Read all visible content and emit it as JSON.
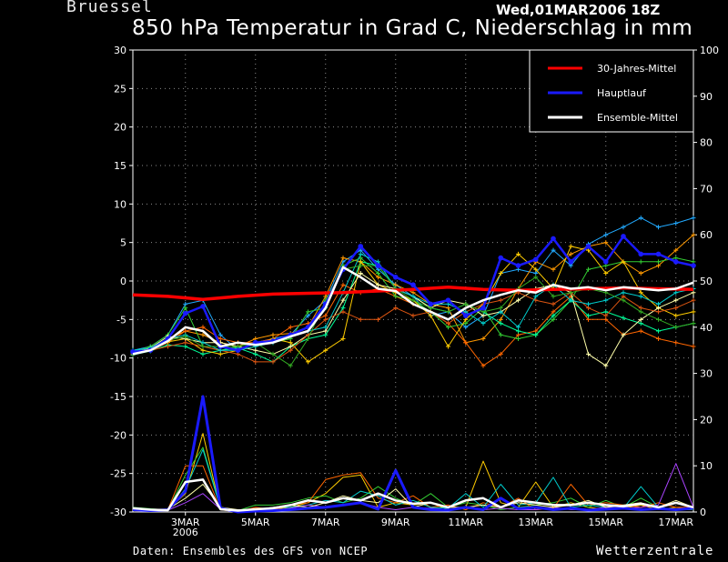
{
  "header": {
    "station": "Bruessel",
    "datetime": "Wed,01MAR2006 18Z",
    "title": "850 hPa Temperatur in Grad C, Niederschlag in mm"
  },
  "footer": {
    "source": "Daten: Ensembles des GFS von NCEP",
    "brand": "Wetterzentrale"
  },
  "chart_data": {
    "type": "line",
    "title": "850 hPa Temperatur in Grad C, Niederschlag in mm",
    "y_left": {
      "range": [
        -30,
        30
      ],
      "ticks": [
        "30",
        "25",
        "20",
        "15",
        "10",
        "5",
        "0",
        "-5",
        "-10",
        "-15",
        "-20",
        "-25",
        "-30"
      ]
    },
    "y_right": {
      "range": [
        0,
        100
      ],
      "ticks": [
        "100",
        "90",
        "80",
        "70",
        "60",
        "50",
        "40",
        "30",
        "20",
        "10",
        "0"
      ]
    },
    "x_range": [
      0,
      16
    ],
    "x_ticks": [
      {
        "label": "3MAR",
        "sub": "2006",
        "x": 1.5
      },
      {
        "label": "5MAR",
        "x": 3.5
      },
      {
        "label": "7MAR",
        "x": 5.5
      },
      {
        "label": "9MAR",
        "x": 7.5
      },
      {
        "label": "11MAR",
        "x": 9.5
      },
      {
        "label": "13MAR",
        "x": 11.5
      },
      {
        "label": "15MAR",
        "x": 13.5
      },
      {
        "label": "17MAR",
        "x": 15.5
      }
    ],
    "grid": true,
    "legend_position": "top-right",
    "legend": [
      {
        "name": "30-Jahres-Mittel",
        "color": "#ff0000"
      },
      {
        "name": "Hauptlauf",
        "color": "#1a1aff"
      },
      {
        "name": "Ensemble-Mittel",
        "color": "#ffffff"
      }
    ],
    "temperature": {
      "climate_mean": {
        "color": "#ff0000",
        "x": [
          0,
          1,
          2,
          3,
          4,
          5,
          6,
          7,
          8,
          9,
          10,
          11,
          12,
          13,
          14,
          15,
          16
        ],
        "y": [
          -1.8,
          -2.0,
          -2.4,
          -2.0,
          -1.7,
          -1.6,
          -1.5,
          -1.3,
          -1.1,
          -0.8,
          -1.1,
          -1.2,
          -1.1,
          -1.0,
          -0.9,
          -1.0,
          -1.1
        ]
      },
      "main_run": {
        "color": "#1a1aff",
        "x": [
          0,
          0.5,
          1,
          1.5,
          2,
          2.5,
          3,
          3.5,
          4,
          4.5,
          5,
          5.5,
          6,
          6.5,
          7,
          7.5,
          8,
          8.5,
          9,
          9.5,
          10,
          10.5,
          11,
          11.5,
          12,
          12.5,
          13,
          13.5,
          14,
          14.5,
          15,
          15.5,
          16
        ],
        "y": [
          -9.2,
          -9.0,
          -7.5,
          -4.2,
          -3.3,
          -8.5,
          -9.0,
          -8.0,
          -7.8,
          -7.0,
          -6.0,
          -3.0,
          1.5,
          4.5,
          2.0,
          0.5,
          -0.5,
          -3.0,
          -2.5,
          -4.5,
          -3.5,
          3.0,
          2.0,
          2.8,
          5.5,
          2.5,
          4.5,
          2.5,
          5.8,
          3.5,
          3.5,
          2.5,
          2.0
        ]
      },
      "ensemble_mean": {
        "color": "#ffffff",
        "x": [
          0,
          0.5,
          1,
          1.5,
          2,
          2.5,
          3,
          3.5,
          4,
          4.5,
          5,
          5.5,
          6,
          6.5,
          7,
          7.5,
          8,
          8.5,
          9,
          9.5,
          10,
          10.5,
          11,
          11.5,
          12,
          12.5,
          13,
          13.5,
          14,
          14.5,
          15,
          15.5,
          16
        ],
        "y": [
          -9.5,
          -9.0,
          -7.8,
          -6.0,
          -6.5,
          -8.5,
          -8.0,
          -8.3,
          -8.0,
          -7.2,
          -6.5,
          -3.5,
          1.8,
          0.5,
          -1.0,
          -1.3,
          -3.0,
          -4.0,
          -5.0,
          -3.5,
          -2.5,
          -1.8,
          -1.2,
          -1.5,
          -0.5,
          -1.0,
          -0.8,
          -1.2,
          -0.8,
          -1.0,
          -1.2,
          -1.0,
          -0.2
        ]
      },
      "members": [
        {
          "color": "#22aaff",
          "y": [
            -9.0,
            -8.5,
            -7.0,
            -3.0,
            -2.5,
            -7.0,
            -9.0,
            -8.0,
            -7.5,
            -7.0,
            -4.5,
            -2.5,
            2.5,
            4.0,
            1.5,
            -0.5,
            -2.0,
            -4.5,
            -4.0,
            -6.0,
            -4.5,
            1.0,
            1.5,
            1.0,
            4.0,
            2.0,
            4.8,
            6.0,
            7.0,
            8.2,
            7.0,
            7.5,
            8.2
          ]
        },
        {
          "color": "#ff9900",
          "y": [
            -9.3,
            -8.8,
            -7.5,
            -6.5,
            -7.0,
            -8.0,
            -8.5,
            -7.5,
            -7.0,
            -6.8,
            -6.0,
            -2.0,
            3.0,
            2.5,
            0.5,
            -0.5,
            -1.5,
            -3.0,
            -3.5,
            -8.0,
            -7.5,
            -5.0,
            -1.0,
            2.5,
            1.5,
            3.5,
            4.5,
            5.0,
            2.5,
            1.0,
            2.0,
            4.0,
            6.0
          ]
        },
        {
          "color": "#ff6600",
          "y": [
            -9.5,
            -9.0,
            -8.0,
            -6.5,
            -6.0,
            -7.5,
            -8.0,
            -8.0,
            -7.5,
            -6.0,
            -5.5,
            -4.5,
            -0.5,
            -1.5,
            -1.0,
            -2.0,
            -3.0,
            -4.0,
            -5.5,
            -8.0,
            -11.0,
            -9.5,
            -7.0,
            -6.5,
            -4.0,
            -2.0,
            -5.0,
            -5.0,
            -7.0,
            -6.5,
            -7.5,
            -8.0,
            -8.5
          ]
        },
        {
          "color": "#33cc33",
          "y": [
            -9.2,
            -8.5,
            -7.0,
            -3.5,
            -8.5,
            -9.0,
            -8.5,
            -8.0,
            -8.0,
            -7.5,
            -4.0,
            -3.5,
            2.0,
            3.0,
            1.0,
            -2.0,
            -2.5,
            -4.0,
            -6.0,
            -5.5,
            -3.5,
            -7.0,
            -7.5,
            -7.0,
            -5.0,
            -2.5,
            1.5,
            2.0,
            2.5,
            2.5,
            2.5,
            3.0,
            2.5
          ]
        },
        {
          "color": "#00ff99",
          "y": [
            -9.6,
            -9.1,
            -8.3,
            -8.5,
            -9.5,
            -9.0,
            -8.7,
            -9.5,
            -10.5,
            -8.5,
            -7.5,
            -7.0,
            -3.5,
            2.5,
            2.0,
            -1.0,
            -2.0,
            -3.5,
            -4.0,
            -3.0,
            -4.0,
            -5.5,
            -6.5,
            -7.0,
            -4.5,
            -2.5,
            -4.5,
            -4.0,
            -4.8,
            -5.5,
            -6.5,
            -6.0,
            -5.5
          ]
        },
        {
          "color": "#ffcc00",
          "y": [
            -9.4,
            -8.9,
            -7.9,
            -7.5,
            -9.0,
            -9.5,
            -9.0,
            -8.5,
            -7.5,
            -8.0,
            -10.5,
            -9.0,
            -7.5,
            2.5,
            -0.5,
            -1.5,
            -2.5,
            -4.5,
            -8.5,
            -5.0,
            -3.0,
            1.0,
            3.5,
            1.5,
            -1.0,
            4.5,
            4.0,
            1.0,
            2.5,
            -1.5,
            -3.5,
            -4.5,
            -4.0
          ]
        },
        {
          "color": "#ffffaa",
          "y": [
            -9.3,
            -8.7,
            -7.2,
            -7.5,
            -8.0,
            -8.0,
            -8.5,
            -9.0,
            -9.5,
            -8.5,
            -7.0,
            -6.5,
            -2.5,
            1.0,
            -0.5,
            -1.0,
            -2.0,
            -3.5,
            -2.5,
            -3.0,
            -4.5,
            -4.0,
            -2.5,
            -1.0,
            -0.5,
            -1.5,
            -9.5,
            -11.0,
            -7.0,
            -5.0,
            -3.5,
            -2.5,
            -1.5
          ]
        },
        {
          "color": "#dd5511",
          "y": [
            -9.5,
            -9.0,
            -8.5,
            -8.0,
            -8.5,
            -9.0,
            -9.5,
            -10.5,
            -10.5,
            -9.0,
            -7.0,
            -5.0,
            -4.0,
            -5.0,
            -5.0,
            -3.5,
            -4.5,
            -4.0,
            -5.5,
            -4.0,
            -3.0,
            -2.5,
            -1.5,
            -2.5,
            -3.0,
            -1.5,
            -3.5,
            -4.5,
            -2.0,
            -3.5,
            -4.0,
            -3.5,
            -2.5
          ]
        },
        {
          "color": "#00cccc",
          "y": [
            -9.0,
            -8.7,
            -7.5,
            -7.0,
            -8.0,
            -9.0,
            -9.0,
            -8.5,
            -8.0,
            -7.0,
            -6.5,
            -6.0,
            -1.5,
            3.5,
            2.5,
            -1.0,
            -2.0,
            -3.0,
            -3.0,
            -4.0,
            -5.5,
            -4.0,
            -6.0,
            -2.0,
            -0.5,
            -2.5,
            -3.0,
            -2.5,
            -1.5,
            -2.0,
            -3.0,
            -1.5,
            -1.0
          ]
        },
        {
          "color": "#33aa22",
          "y": [
            -9.4,
            -8.9,
            -7.7,
            -7.2,
            -8.5,
            -8.5,
            -8.5,
            -8.0,
            -9.5,
            -11.0,
            -7.5,
            -2.5,
            1.5,
            2.0,
            2.0,
            -1.0,
            -2.5,
            -3.5,
            -4.0,
            -3.0,
            -4.0,
            -3.5,
            -1.0,
            0.5,
            -2.0,
            -1.5,
            -1.0,
            -1.5,
            -2.5,
            -4.0,
            -5.0,
            -6.0,
            -5.5
          ]
        }
      ]
    },
    "precipitation": {
      "main_run": {
        "color": "#1a1aff",
        "x": [
          0,
          0.5,
          1,
          1.5,
          2,
          2.5,
          3,
          3.5,
          4,
          4.5,
          5,
          5.5,
          6,
          6.5,
          7,
          7.5,
          8,
          8.5,
          9,
          9.5,
          10,
          10.5,
          11,
          11.5,
          12,
          12.5,
          13,
          13.5,
          14,
          14.5,
          15,
          15.5,
          16
        ],
        "y": [
          0.5,
          0.3,
          0.5,
          4.5,
          25.0,
          0.8,
          0,
          0.2,
          0.3,
          0.5,
          0.8,
          1.0,
          1.5,
          2.0,
          0.6,
          9.0,
          1.0,
          0.5,
          0.4,
          1.0,
          0.5,
          3.0,
          0.7,
          1.0,
          0.5,
          0.8,
          0.4,
          0.6,
          0.8,
          0.5,
          0.7,
          0.5,
          0.8
        ]
      },
      "ensemble_mean": {
        "color": "#ffffff",
        "x": [
          0,
          0.5,
          1,
          1.5,
          2,
          2.5,
          3,
          3.5,
          4,
          4.5,
          5,
          5.5,
          6,
          6.5,
          7,
          7.5,
          8,
          8.5,
          9,
          9.5,
          10,
          10.5,
          11,
          11.5,
          12,
          12.5,
          13,
          13.5,
          14,
          14.5,
          15,
          15.5,
          16
        ],
        "y": [
          0.8,
          0.5,
          0.4,
          6.5,
          7.0,
          0.6,
          0.3,
          0.6,
          0.8,
          1.5,
          2.5,
          2.0,
          3.0,
          2.5,
          4.0,
          2.5,
          1.8,
          2.0,
          1.0,
          2.5,
          3.0,
          1.0,
          2.5,
          2.0,
          1.5,
          1.5,
          2.0,
          1.5,
          1.2,
          1.8,
          1.0,
          2.0,
          1.0
        ]
      },
      "members": [
        {
          "color": "#ffcc00",
          "y": [
            0.5,
            0.3,
            0.5,
            4.0,
            17.0,
            0.5,
            0,
            0.2,
            0.6,
            1.0,
            2.0,
            4.0,
            7.5,
            8.0,
            1.0,
            2.0,
            1.5,
            2.0,
            0.5,
            1.0,
            11.0,
            2.0,
            1.0,
            6.5,
            1.0,
            2.0,
            1.0,
            0.5,
            0.8,
            1.5,
            0.5,
            1.0,
            0.5
          ]
        },
        {
          "color": "#33cc33",
          "y": [
            1.0,
            0.7,
            0.4,
            8.0,
            14.0,
            1.0,
            0.3,
            1.5,
            1.5,
            2.0,
            3.0,
            3.5,
            2.0,
            3.0,
            5.5,
            3.0,
            1.5,
            4.0,
            1.0,
            2.0,
            1.5,
            0.5,
            1.0,
            1.5,
            2.0,
            3.0,
            1.0,
            2.5,
            1.0,
            3.0,
            1.0,
            0.5,
            0.5
          ]
        },
        {
          "color": "#ff6600",
          "y": [
            0.3,
            0.2,
            0.5,
            10.0,
            10.0,
            0.5,
            0,
            1.0,
            0.5,
            1.5,
            2.0,
            7.0,
            8.0,
            8.5,
            3.0,
            2.0,
            3.5,
            1.0,
            1.5,
            0.5,
            2.0,
            1.0,
            3.0,
            0.5,
            0.8,
            6.0,
            1.5,
            2.0,
            1.5,
            1.0,
            2.0,
            1.0,
            1.0
          ]
        },
        {
          "color": "#00cccc",
          "y": [
            0.5,
            0.4,
            0.3,
            5.0,
            13.5,
            0.8,
            0.2,
            0.5,
            1.0,
            1.0,
            1.5,
            2.5,
            2.0,
            4.5,
            3.5,
            1.5,
            2.5,
            1.0,
            0.8,
            4.0,
            1.0,
            6.0,
            1.5,
            2.0,
            7.5,
            1.0,
            1.5,
            1.0,
            0.8,
            5.5,
            1.0,
            0.5,
            1.0
          ]
        },
        {
          "color": "#aa44ff",
          "y": [
            0.4,
            0.3,
            0.4,
            2.0,
            4.0,
            0.6,
            0.2,
            0.5,
            0.4,
            0.8,
            1.5,
            1.0,
            1.5,
            2.0,
            1.0,
            0.5,
            1.0,
            0.8,
            0.5,
            1.0,
            0.5,
            0.8,
            0.5,
            0.5,
            1.0,
            0.5,
            0.5,
            1.0,
            0.8,
            1.0,
            1.5,
            10.5,
            1.0
          ]
        },
        {
          "color": "#ffffaa",
          "y": [
            0.6,
            0.5,
            0.6,
            3.0,
            6.0,
            1.0,
            0.5,
            0.5,
            1.0,
            1.5,
            1.0,
            2.0,
            3.5,
            2.5,
            2.0,
            5.0,
            1.0,
            2.0,
            1.0,
            1.0,
            1.5,
            1.0,
            2.0,
            1.5,
            1.0,
            1.5,
            2.5,
            1.0,
            1.5,
            2.0,
            1.0,
            2.5,
            1.0
          ]
        }
      ]
    }
  }
}
